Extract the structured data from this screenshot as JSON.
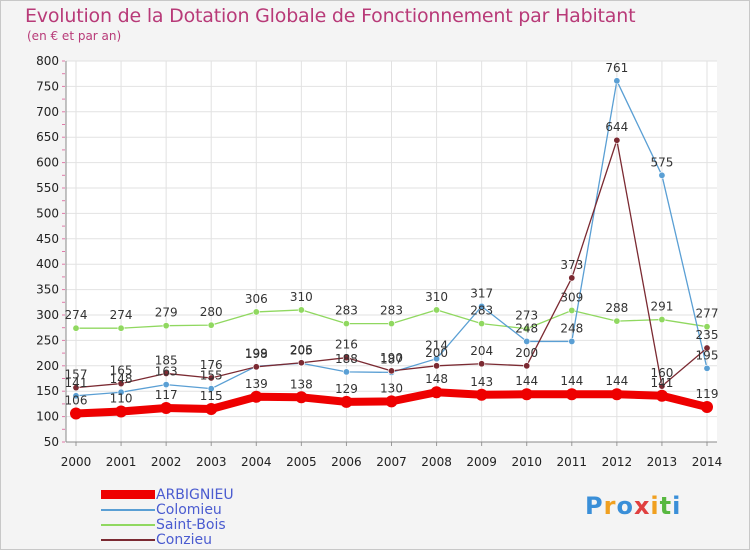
{
  "chart_data": {
    "type": "line",
    "title": "Evolution de la Dotation Globale de Fonctionnement par Habitant",
    "subtitle": "(en € et par an)",
    "xlabel": "",
    "ylabel": "",
    "ylim": [
      50,
      800
    ],
    "yticks": [
      "50",
      "100",
      "150",
      "200",
      "250",
      "300",
      "350",
      "400",
      "450",
      "500",
      "550",
      "600",
      "650",
      "700",
      "750",
      "800"
    ],
    "categories": [
      "2000",
      "2001",
      "2002",
      "2003",
      "2004",
      "2005",
      "2006",
      "2007",
      "2008",
      "2009",
      "2010",
      "2011",
      "2012",
      "2013",
      "2014"
    ],
    "grid": true,
    "legend_position": "bottom-left",
    "series": [
      {
        "name": "ARBIGNIEU",
        "color": "#ee0000",
        "values": [
          106,
          110,
          117,
          115,
          139,
          138,
          129,
          130,
          148,
          143,
          144,
          144,
          144,
          141,
          119
        ],
        "labels": [
          "106",
          "110",
          "117",
          "115",
          "139",
          "138",
          "129",
          "130",
          "148",
          "143",
          "144",
          "144",
          "144",
          "141",
          "119"
        ]
      },
      {
        "name": "Colomieu",
        "color": "#5a9fd4",
        "values": [
          141,
          148,
          163,
          155,
          199,
          205,
          188,
          187,
          214,
          317,
          248,
          248,
          761,
          575,
          195
        ],
        "labels": [
          "141",
          "148",
          "163",
          "155",
          "199",
          "205",
          "188",
          "187",
          "214",
          "317",
          "248",
          "248",
          "761",
          "575",
          "195"
        ]
      },
      {
        "name": "Saint-Bois",
        "color": "#90d860",
        "values": [
          274,
          274,
          279,
          280,
          306,
          310,
          283,
          283,
          310,
          283,
          273,
          309,
          288,
          291,
          277
        ],
        "labels": [
          "274",
          "274",
          "279",
          "280",
          "306",
          "310",
          "283",
          "283",
          "310",
          "283",
          "273",
          "309",
          "288",
          "291",
          "277"
        ]
      },
      {
        "name": "Conzieu",
        "color": "#7b2a32",
        "values": [
          157,
          165,
          185,
          176,
          198,
          206,
          216,
          190,
          200,
          204,
          200,
          373,
          644,
          160,
          235
        ],
        "labels": [
          "157",
          "165",
          "185",
          "176",
          "198",
          "206",
          "216",
          "190",
          "200",
          "204",
          "200",
          "373",
          "644",
          "160",
          "235"
        ]
      }
    ]
  },
  "logo": {
    "letters": [
      "P",
      "r",
      "o",
      "x",
      "i",
      "t",
      "i"
    ],
    "colors": [
      "#3a8fd8",
      "#f0a020",
      "#3a8fd8",
      "#e04040",
      "#f0a020",
      "#58b840",
      "#3a8fd8"
    ]
  }
}
